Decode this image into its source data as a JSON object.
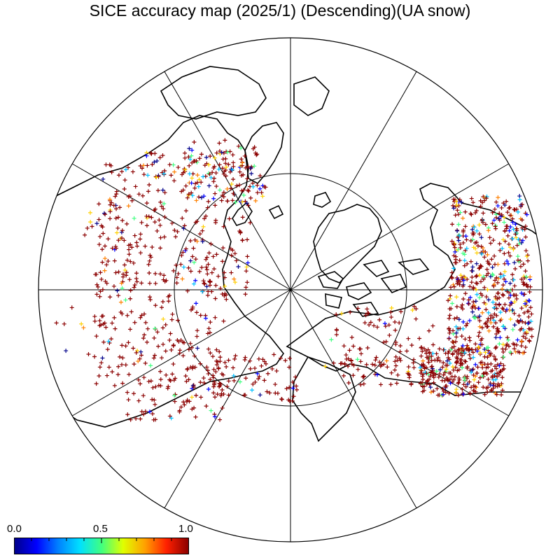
{
  "title": "SICE accuracy map (2025/1) (Descending)(UA snow)",
  "colorbar": {
    "min_label": "0.0",
    "mid_label": "0.5",
    "max_label": "1.0",
    "stops": [
      "#00008b",
      "#0000ff",
      "#0080ff",
      "#00e0ff",
      "#40ff80",
      "#e0ff00",
      "#ffa000",
      "#ff2000",
      "#8b0000"
    ]
  },
  "map": {
    "projection": "north polar stereographic",
    "meridian_spacing_deg": 30,
    "inner_circle_lat_deg": 60,
    "point_colors": [
      "#8b0000",
      "#00008b",
      "#0000ff",
      "#00c0ff",
      "#40ff80",
      "#ffd000",
      "#ff8000"
    ]
  }
}
